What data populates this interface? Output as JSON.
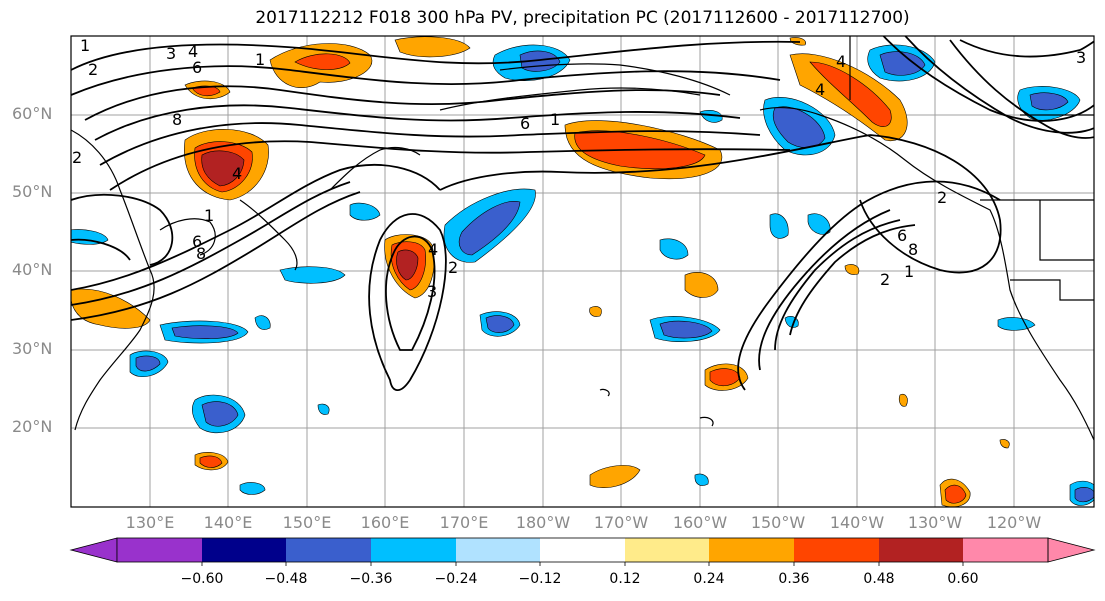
{
  "title": "2017112212 F018 300 hPa PV, precipitation PC (2017112600 - 2017112700)",
  "lat_labels": [
    "60°N",
    "50°N",
    "40°N",
    "30°N",
    "20°N"
  ],
  "lon_labels": [
    "130°E",
    "140°E",
    "150°E",
    "160°E",
    "170°E",
    "180°W",
    "170°W",
    "160°W",
    "150°W",
    "140°W",
    "130°W",
    "120°W"
  ],
  "colorbar": {
    "ticks": [
      "−0.60",
      "−0.48",
      "−0.36",
      "−0.24",
      "−0.12",
      "0.12",
      "0.24",
      "0.36",
      "0.48",
      "0.60"
    ],
    "colors": [
      "#9932cc",
      "#00008b",
      "#3a5fcd",
      "#00bfff",
      "#b0e2ff",
      "#ffffff",
      "#ffeb8a",
      "#ffa500",
      "#ff4500",
      "#b22222",
      "#ff88aa"
    ]
  },
  "contour_labels": [
    "1",
    "2",
    "3",
    "4",
    "6",
    "8",
    "1",
    "2",
    "4",
    "6",
    "8",
    "1",
    "6",
    "1",
    "4",
    "2",
    "3",
    "4",
    "2",
    "1",
    "6",
    "8",
    "4",
    "2",
    "3"
  ]
}
